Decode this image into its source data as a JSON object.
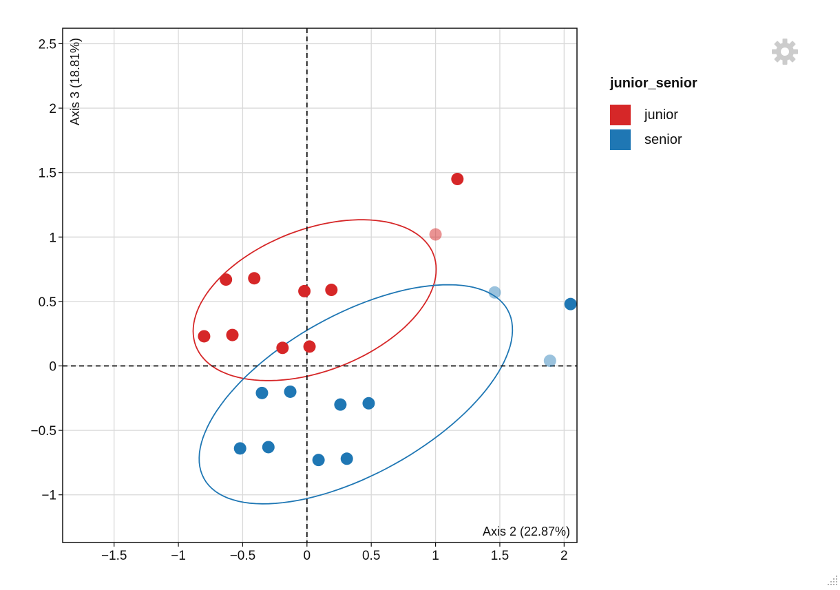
{
  "chart_data": {
    "type": "scatter",
    "xlabel": "Axis 2 (22.87%)",
    "ylabel": "Axis 3 (18.81%)",
    "xlim": [
      -1.9,
      2.1
    ],
    "ylim": [
      -1.37,
      2.62
    ],
    "x_ticks": [
      -1.5,
      -1,
      -0.5,
      0,
      0.5,
      1,
      1.5,
      2
    ],
    "x_tick_labels": [
      "−1.5",
      "−1",
      "−0.5",
      "0",
      "0.5",
      "1",
      "1.5",
      "2"
    ],
    "y_ticks": [
      -1,
      -0.5,
      0,
      0.5,
      1,
      1.5,
      2,
      2.5
    ],
    "y_tick_labels": [
      "−1",
      "−0.5",
      "0",
      "0.5",
      "1",
      "1.5",
      "2",
      "2.5"
    ],
    "grid": true,
    "legend": {
      "title": "junior_senior",
      "placement": "right",
      "entries": [
        {
          "label": "junior",
          "color": "#d62728"
        },
        {
          "label": "senior",
          "color": "#1f77b4"
        }
      ]
    },
    "series": [
      {
        "name": "junior",
        "color": "#d62728",
        "points": [
          {
            "x": -0.63,
            "y": 0.67
          },
          {
            "x": -0.41,
            "y": 0.68
          },
          {
            "x": -0.02,
            "y": 0.58
          },
          {
            "x": 0.19,
            "y": 0.59
          },
          {
            "x": -0.8,
            "y": 0.23
          },
          {
            "x": -0.58,
            "y": 0.24
          },
          {
            "x": -0.19,
            "y": 0.14
          },
          {
            "x": 0.02,
            "y": 0.15
          },
          {
            "x": 1.17,
            "y": 1.45
          },
          {
            "x": 1.0,
            "y": 1.02,
            "opacity": 0.5
          }
        ],
        "ellipse": {
          "cx": 0.06,
          "cy": 0.51,
          "rx": 0.99,
          "ry": 0.55,
          "angle_deg": 21
        }
      },
      {
        "name": "senior",
        "color": "#1f77b4",
        "points": [
          {
            "x": -0.35,
            "y": -0.21
          },
          {
            "x": -0.13,
            "y": -0.2
          },
          {
            "x": 0.26,
            "y": -0.3
          },
          {
            "x": 0.48,
            "y": -0.29
          },
          {
            "x": -0.52,
            "y": -0.64
          },
          {
            "x": -0.3,
            "y": -0.63
          },
          {
            "x": 0.09,
            "y": -0.73
          },
          {
            "x": 0.31,
            "y": -0.72
          },
          {
            "x": 2.05,
            "y": 0.48
          },
          {
            "x": 1.46,
            "y": 0.57,
            "opacity": 0.45
          },
          {
            "x": 1.89,
            "y": 0.04,
            "opacity": 0.45
          }
        ],
        "ellipse": {
          "cx": 0.38,
          "cy": -0.22,
          "rx": 1.35,
          "ry": 0.62,
          "angle_deg": 29
        }
      }
    ]
  }
}
